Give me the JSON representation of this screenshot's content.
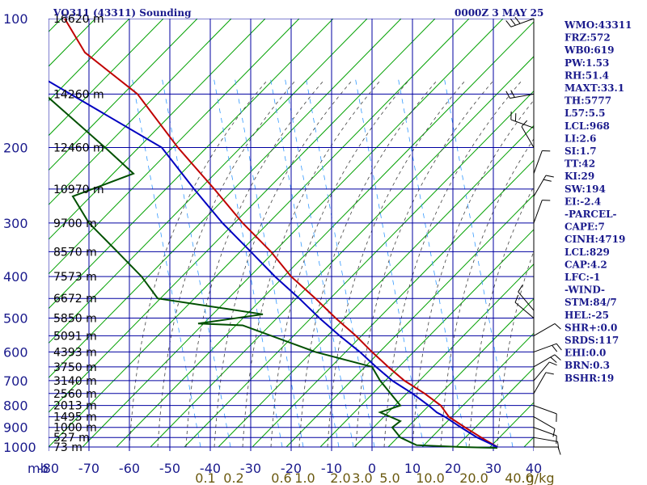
{
  "header": {
    "station": "VQ311 (43311) Sounding",
    "datetime": "0000Z  3 MAY 25"
  },
  "indices": [
    "WMO:43311",
    "FRZ:572",
    "WB0:619",
    "PW:1.53",
    "RH:51.4",
    "MAXT:33.1",
    "TH:5777",
    "L57:5.5",
    "LCL:968",
    "LI:2.6",
    "SI:1.7",
    "TT:42",
    "KI:29",
    "SW:194",
    "EI:-2.4",
    "-PARCEL-",
    "CAPE:7",
    "CINH:4719",
    "LCL:829",
    "CAP:4.2",
    "LFC:-1",
    "-WIND-",
    "STM:84/7",
    "HEL:-25",
    "SHR+:0.0",
    "SRDS:117",
    "EHI:0.0",
    "BRN:0.3",
    "BSHR:19"
  ],
  "colors": {
    "grid": "#0000a0",
    "dry_adiabat": "#00a000",
    "moist_adiabat": "#404040",
    "mixing_ratio": "#3399ff",
    "temperature": "#c00000",
    "dewpoint": "#005000",
    "parcel": "#0000c0",
    "wind": "#000000",
    "text": "#1a1a8c",
    "mixing_label": "#6b5a10"
  },
  "chart_data": {
    "type": "skew-t",
    "pressure_axis_unit": "mb",
    "temperature_axis_unit": "C",
    "pressure_ticks": [
      "100",
      "200",
      "300",
      "400",
      "500",
      "600",
      "700",
      "800",
      "900",
      "1000"
    ],
    "temperature_ticks": [
      "-80",
      "-70",
      "-60",
      "-50",
      "-40",
      "-30",
      "-20",
      "-10",
      "0",
      "10",
      "20",
      "30",
      "40"
    ],
    "mixing_ratio_labels": [
      "0.1",
      "0.2",
      "0.6",
      "1.0",
      "2.0",
      "3.0",
      "5.0",
      "10.0",
      "20.0",
      "40.0"
    ],
    "mixing_ratio_unit": "g/kg",
    "heights": [
      {
        "p": 100,
        "label": "16620 m"
      },
      {
        "p": 150,
        "label": "14260 m"
      },
      {
        "p": 200,
        "label": "12460 m"
      },
      {
        "p": 250,
        "label": "10970 m"
      },
      {
        "p": 300,
        "label": "9700 m"
      },
      {
        "p": 350,
        "label": "8570 m"
      },
      {
        "p": 400,
        "label": "7573 m"
      },
      {
        "p": 450,
        "label": "6672 m"
      },
      {
        "p": 500,
        "label": "5850 m"
      },
      {
        "p": 550,
        "label": "5091 m"
      },
      {
        "p": 600,
        "label": "4393 m"
      },
      {
        "p": 650,
        "label": "3750 m"
      },
      {
        "p": 700,
        "label": "3140 m"
      },
      {
        "p": 750,
        "label": "2560 m"
      },
      {
        "p": 800,
        "label": "2013 m"
      },
      {
        "p": 850,
        "label": "1495 m"
      },
      {
        "p": 900,
        "label": "1000 m"
      },
      {
        "p": 950,
        "label": "527 m"
      },
      {
        "p": 1000,
        "label": "73 m"
      }
    ],
    "series": [
      {
        "key": "temperature",
        "points": [
          [
            100,
            -76
          ],
          [
            120,
            -71
          ],
          [
            150,
            -58
          ],
          [
            200,
            -48
          ],
          [
            250,
            -39
          ],
          [
            300,
            -32
          ],
          [
            350,
            -25
          ],
          [
            400,
            -20
          ],
          [
            450,
            -14
          ],
          [
            500,
            -9
          ],
          [
            550,
            -4
          ],
          [
            600,
            0
          ],
          [
            650,
            4
          ],
          [
            700,
            8
          ],
          [
            750,
            13
          ],
          [
            800,
            17
          ],
          [
            850,
            19
          ],
          [
            900,
            23
          ],
          [
            950,
            27
          ],
          [
            1000,
            31
          ]
        ]
      },
      {
        "key": "dewpoint",
        "points": [
          [
            150,
            -81
          ],
          [
            200,
            -66
          ],
          [
            230,
            -59
          ],
          [
            260,
            -74
          ],
          [
            300,
            -70
          ],
          [
            350,
            -63
          ],
          [
            400,
            -57
          ],
          [
            450,
            -53
          ],
          [
            490,
            -27
          ],
          [
            515,
            -43
          ],
          [
            520,
            -32
          ],
          [
            600,
            -14
          ],
          [
            650,
            0
          ],
          [
            700,
            2
          ],
          [
            800,
            7
          ],
          [
            830,
            2
          ],
          [
            870,
            7
          ],
          [
            900,
            5
          ],
          [
            950,
            7
          ],
          [
            990,
            11
          ],
          [
            1000,
            22
          ],
          [
            1005,
            31
          ]
        ]
      },
      {
        "key": "parcel",
        "points": [
          [
            140,
            -80
          ],
          [
            200,
            -52
          ],
          [
            250,
            -44
          ],
          [
            300,
            -37
          ],
          [
            350,
            -30
          ],
          [
            400,
            -24
          ],
          [
            450,
            -18
          ],
          [
            500,
            -13
          ],
          [
            550,
            -8
          ],
          [
            600,
            -3
          ],
          [
            650,
            1
          ],
          [
            700,
            5
          ],
          [
            750,
            10
          ],
          [
            800,
            14
          ],
          [
            830,
            16
          ],
          [
            850,
            18
          ],
          [
            900,
            22
          ],
          [
            950,
            26
          ],
          [
            1000,
            31
          ]
        ]
      }
    ],
    "wind": [
      {
        "p": 100,
        "dir": 250,
        "spd": 25
      },
      {
        "p": 150,
        "dir": 260,
        "spd": 20
      },
      {
        "p": 180,
        "dir": 290,
        "spd": 15
      },
      {
        "p": 200,
        "dir": 330,
        "spd": 10
      },
      {
        "p": 230,
        "dir": 20,
        "spd": 10
      },
      {
        "p": 260,
        "dir": 30,
        "spd": 15
      },
      {
        "p": 300,
        "dir": 20,
        "spd": 10
      },
      {
        "p": 480,
        "dir": 320,
        "spd": 10
      },
      {
        "p": 500,
        "dir": 310,
        "spd": 10
      },
      {
        "p": 550,
        "dir": 60,
        "spd": 10
      },
      {
        "p": 600,
        "dir": 70,
        "spd": 15
      },
      {
        "p": 650,
        "dir": 60,
        "spd": 15
      },
      {
        "p": 700,
        "dir": 40,
        "spd": 10
      },
      {
        "p": 750,
        "dir": 30,
        "spd": 5
      },
      {
        "p": 800,
        "dir": 110,
        "spd": 10
      },
      {
        "p": 850,
        "dir": 120,
        "spd": 10
      },
      {
        "p": 900,
        "dir": 110,
        "spd": 10
      },
      {
        "p": 950,
        "dir": 100,
        "spd": 10
      },
      {
        "p": 1000,
        "dir": 90,
        "spd": 5
      }
    ]
  }
}
